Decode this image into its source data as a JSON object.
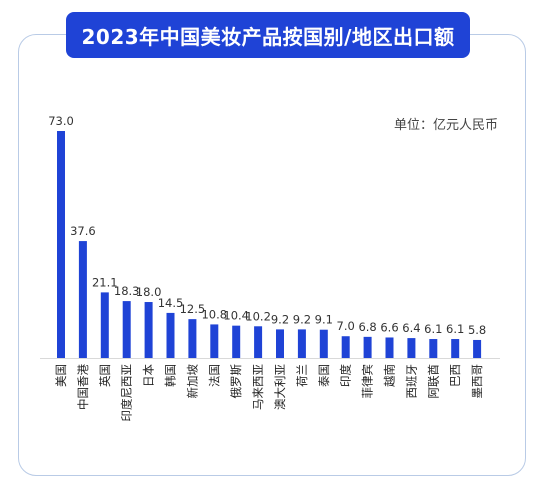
{
  "title": "2023年中国美妆产品按国别/地区出口额",
  "unit": "单位：亿元人民币",
  "colors": {
    "bar": "#1f43d6",
    "title_bg": "#1f43d6",
    "frame": "#b9cbe6"
  },
  "chart_data": {
    "type": "bar",
    "title": "2023年中国美妆产品按国别/地区出口额",
    "unit": "单位：亿元人民币",
    "categories": [
      "美国",
      "中国香港",
      "英国",
      "印度尼西亚",
      "日本",
      "韩国",
      "新加坡",
      "法国",
      "俄罗斯",
      "马来西亚",
      "澳大利亚",
      "荷兰",
      "泰国",
      "印度",
      "菲律宾",
      "越南",
      "西班牙",
      "阿联酋",
      "巴西",
      "墨西哥"
    ],
    "values": [
      73.0,
      37.6,
      21.1,
      18.3,
      18.0,
      14.5,
      12.5,
      10.8,
      10.4,
      10.2,
      9.2,
      9.2,
      9.1,
      7.0,
      6.8,
      6.6,
      6.4,
      6.1,
      6.1,
      5.8
    ],
    "value_labels": [
      "73.0",
      "37.6",
      "21.1",
      "18.3",
      "18.0",
      "14.5",
      "12.5",
      "10.8",
      "10.4",
      "10.2",
      "9.2",
      "9.2",
      "9.1",
      "7.0",
      "6.8",
      "6.6",
      "6.4",
      "6.1",
      "6.1",
      "5.8"
    ],
    "ylim": [
      0,
      73
    ],
    "grid": false,
    "legend": "none"
  }
}
